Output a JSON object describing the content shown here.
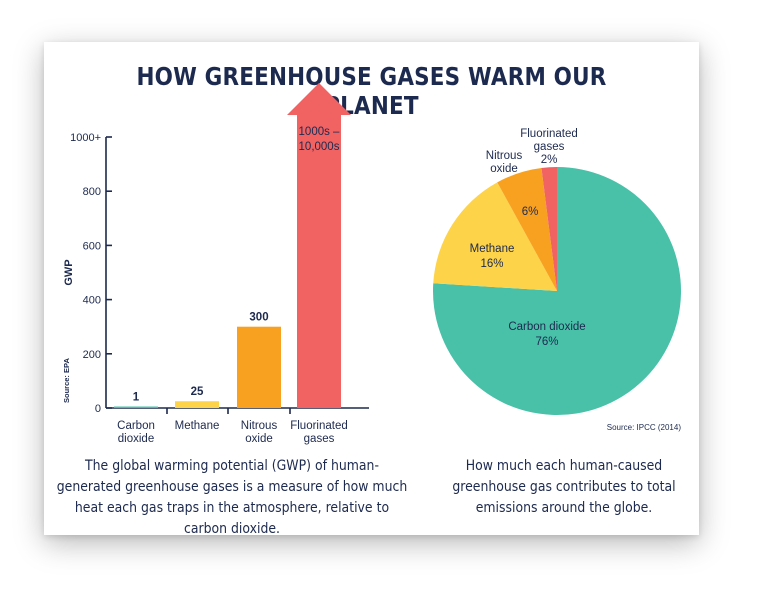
{
  "title": "HOW GREENHOUSE GASES WARM OUR PLANET",
  "captions": {
    "left": "The global warming potential (GWP) of human-generated greenhouse gases is a measure of how much heat each gas traps in the atmosphere, relative to carbon dioxide.",
    "right": "How much each human-caused greenhouse gas contributes to total emissions around the globe."
  },
  "colors": {
    "co2": "#48c1a8",
    "methane": "#fdd349",
    "nitrous": "#f8a121",
    "fluorinated": "#f16262",
    "text": "#1d2a4f"
  },
  "chart_data": [
    {
      "type": "bar",
      "ylabel": "GWP",
      "source": "Source: EPA",
      "ylim": [
        0,
        1000
      ],
      "yticks": [
        {
          "value": 0,
          "label": "0"
        },
        {
          "value": 200,
          "label": "200"
        },
        {
          "value": 400,
          "label": "400"
        },
        {
          "value": 600,
          "label": "600"
        },
        {
          "value": 800,
          "label": "800"
        },
        {
          "value": 1000,
          "label": "1000+"
        }
      ],
      "categories": [
        {
          "label": [
            "Carbon",
            "dioxide"
          ],
          "value": 1,
          "value_label": "1",
          "color": "#48c1a8"
        },
        {
          "label": [
            "Methane"
          ],
          "value": 25,
          "value_label": "25",
          "color": "#fdd349"
        },
        {
          "label": [
            "Nitrous",
            "oxide"
          ],
          "value": 300,
          "value_label": "300",
          "color": "#f8a121"
        },
        {
          "label": [
            "Fluorinated",
            "gases"
          ],
          "value": 1000,
          "value_label": [
            "1000s –",
            "10,000s"
          ],
          "color": "#f16262",
          "arrow": true
        }
      ]
    },
    {
      "type": "pie",
      "source": "Source: IPCC (2014)",
      "slices": [
        {
          "name": "Carbon dioxide",
          "value": 76,
          "label": "76%",
          "color": "#48c1a8"
        },
        {
          "name": "Methane",
          "value": 16,
          "label": "16%",
          "color": "#fdd349"
        },
        {
          "name": "Nitrous oxide",
          "value": 6,
          "label": "6%",
          "color": "#f8a121"
        },
        {
          "name": "Fluorinated gases",
          "value": 2,
          "label": "2%",
          "color": "#f16262"
        }
      ]
    }
  ]
}
